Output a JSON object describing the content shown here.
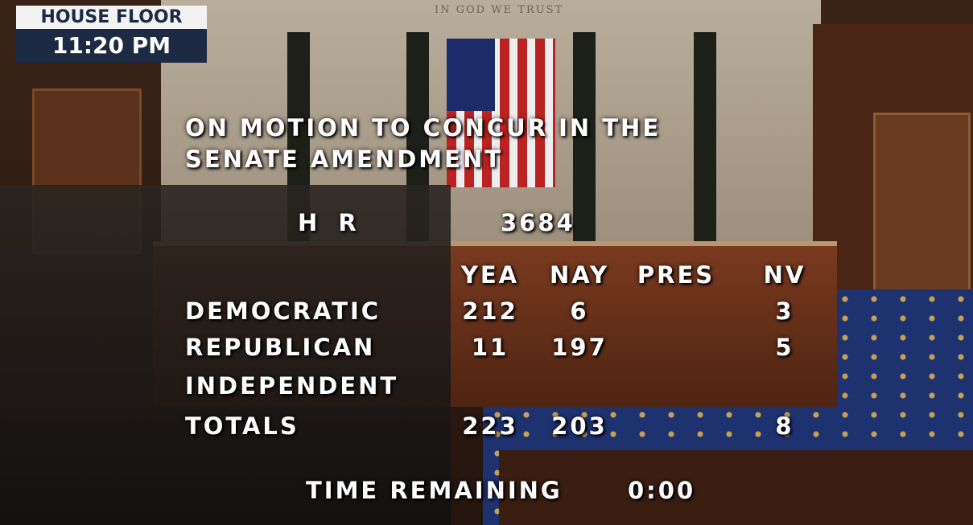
{
  "header": {
    "label": "HOUSE FLOOR",
    "time": "11:20 PM"
  },
  "inscription": "IN GOD WE TRUST",
  "motion": {
    "title_lines": [
      "ON MOTION TO CONCUR IN THE",
      "SENATE AMENDMENT"
    ],
    "bill_prefix": "H R",
    "bill_number": "3684"
  },
  "table": {
    "columns": [
      "YEA",
      "NAY",
      "PRES",
      "NV"
    ],
    "rows": [
      {
        "party": "DEMOCRATIC",
        "yea": 212,
        "nay": 6,
        "nv": 3
      },
      {
        "party": "REPUBLICAN",
        "yea": 11,
        "nay": 197,
        "nv": 5
      },
      {
        "party": "INDEPENDENT"
      },
      {
        "party": "TOTALS",
        "yea": 223,
        "nay": 203,
        "nv": 8
      }
    ]
  },
  "footer": {
    "label": "TIME REMAINING",
    "time": "0:00"
  }
}
